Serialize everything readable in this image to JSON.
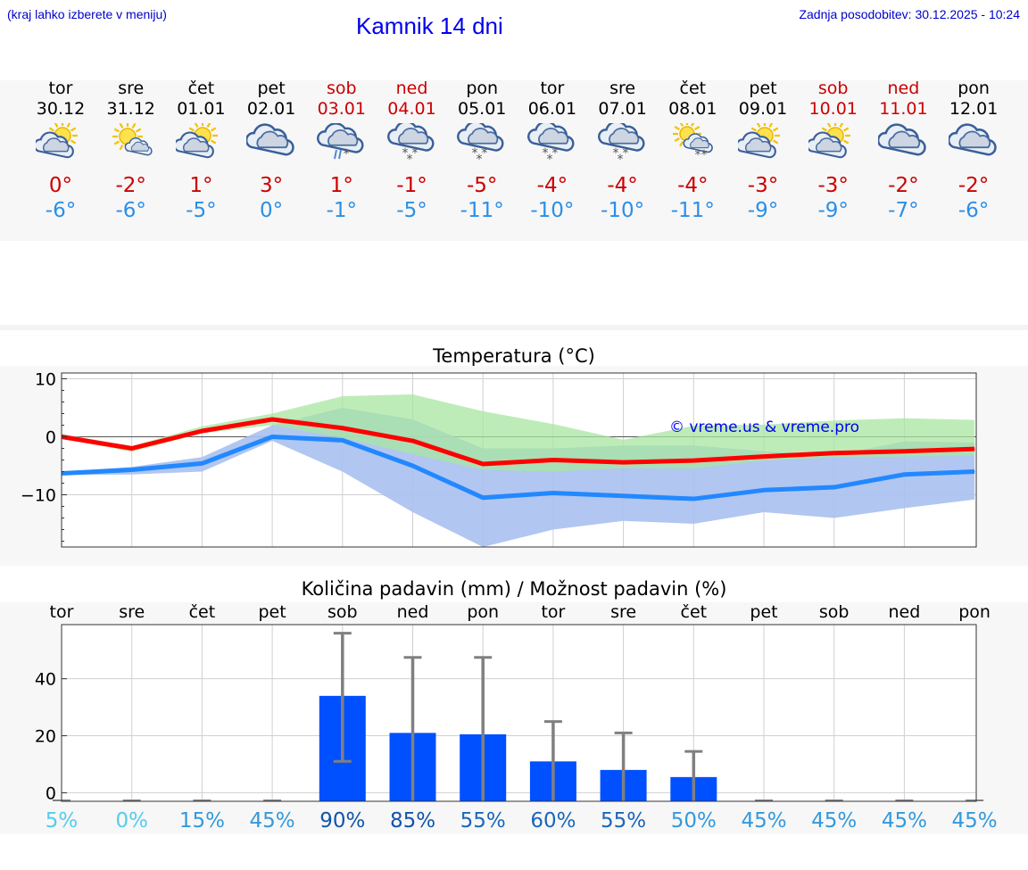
{
  "header": {
    "hint": "(kraj lahko izberete v meniju)",
    "title": "Kamnik 14 dni",
    "updated": "Zadnja posodobitev: 30.12.2025 - 10:24"
  },
  "days": [
    {
      "name": "tor",
      "date": "30.12",
      "weekend": false,
      "icon": "sun-cloud-icon",
      "hi": "0°",
      "lo": "-6°"
    },
    {
      "name": "sre",
      "date": "31.12",
      "weekend": false,
      "icon": "sun-small-cloud-icon",
      "hi": "-2°",
      "lo": "-6°"
    },
    {
      "name": "čet",
      "date": "01.01",
      "weekend": false,
      "icon": "sun-cloud-icon",
      "hi": "1°",
      "lo": "-5°"
    },
    {
      "name": "pet",
      "date": "02.01",
      "weekend": false,
      "icon": "cloudy-icon",
      "hi": "3°",
      "lo": "0°"
    },
    {
      "name": "sob",
      "date": "03.01",
      "weekend": true,
      "icon": "sleet-icon",
      "hi": "1°",
      "lo": "-1°"
    },
    {
      "name": "ned",
      "date": "04.01",
      "weekend": true,
      "icon": "snow-icon",
      "hi": "-1°",
      "lo": "-5°"
    },
    {
      "name": "pon",
      "date": "05.01",
      "weekend": false,
      "icon": "snow-icon",
      "hi": "-5°",
      "lo": "-11°"
    },
    {
      "name": "tor",
      "date": "06.01",
      "weekend": false,
      "icon": "snow-icon",
      "hi": "-4°",
      "lo": "-10°"
    },
    {
      "name": "sre",
      "date": "07.01",
      "weekend": false,
      "icon": "snow-icon",
      "hi": "-4°",
      "lo": "-10°"
    },
    {
      "name": "čet",
      "date": "08.01",
      "weekend": false,
      "icon": "sun-snow-icon",
      "hi": "-4°",
      "lo": "-11°"
    },
    {
      "name": "pet",
      "date": "09.01",
      "weekend": false,
      "icon": "sun-cloud-icon",
      "hi": "-3°",
      "lo": "-9°"
    },
    {
      "name": "sob",
      "date": "10.01",
      "weekend": true,
      "icon": "sun-cloud-icon",
      "hi": "-3°",
      "lo": "-9°"
    },
    {
      "name": "ned",
      "date": "11.01",
      "weekend": true,
      "icon": "cloudy-icon",
      "hi": "-2°",
      "lo": "-7°"
    },
    {
      "name": "pon",
      "date": "12.01",
      "weekend": false,
      "icon": "cloudy-icon",
      "hi": "-2°",
      "lo": "-6°"
    }
  ],
  "colors": {
    "max_line": "#ff0000",
    "min_line": "#2288ff",
    "max_band": "#a8e6a0",
    "min_band": "#a8c0f0",
    "overlap_band": "#7cc4a8",
    "bar": "#0050ff",
    "error_bar": "#808080"
  },
  "chart_data": [
    {
      "type": "line",
      "title": "Temperatura (°C)",
      "watermark": "© vreme.us & vreme.pro",
      "x": [
        0,
        1,
        2,
        3,
        4,
        5,
        6,
        7,
        8,
        9,
        10,
        11,
        12,
        13
      ],
      "ylim": [
        -19,
        11
      ],
      "yticks": [
        10,
        0,
        -10
      ],
      "ytick_labels": [
        "10",
        "0",
        "−10"
      ],
      "series": [
        {
          "name": "max",
          "values": [
            0,
            -2,
            1,
            3,
            1.5,
            -0.7,
            -4.7,
            -4,
            -4.4,
            -4.1,
            -3.4,
            -2.8,
            -2.5,
            -2.1
          ]
        },
        {
          "name": "min",
          "values": [
            -6.3,
            -5.7,
            -4.6,
            0,
            -0.6,
            -5,
            -10.5,
            -9.7,
            -10.2,
            -10.7,
            -9.2,
            -8.7,
            -6.5,
            -6
          ]
        },
        {
          "name": "max_range_high",
          "values": [
            0.5,
            -1.6,
            1.8,
            4,
            7,
            7.3,
            4.4,
            2.2,
            -0.5,
            1.9,
            2.1,
            2.8,
            3.2,
            2.9
          ]
        },
        {
          "name": "max_range_low",
          "values": [
            -0.3,
            -2.6,
            0.6,
            2,
            -0.2,
            -3,
            -5.7,
            -6,
            -5.4,
            -5.5,
            -4.1,
            -3.6,
            -3.4,
            -3.3
          ]
        },
        {
          "name": "min_range_high",
          "values": [
            -6,
            -5.2,
            -3.5,
            2,
            5,
            3,
            -2,
            -2,
            -1.5,
            -1.5,
            -2.5,
            -3.2,
            -0.8,
            -1
          ]
        },
        {
          "name": "min_range_low",
          "values": [
            -6.6,
            -6.5,
            -6,
            -0.7,
            -6,
            -13,
            -19,
            -16,
            -14.5,
            -15,
            -13,
            -14,
            -12.3,
            -10.8
          ]
        }
      ]
    },
    {
      "type": "bar",
      "title": "Količina padavin (mm) / Možnost padavin (%)",
      "categories": [
        "tor",
        "sre",
        "čet",
        "pet",
        "sob",
        "ned",
        "pon",
        "tor",
        "sre",
        "čet",
        "pet",
        "sob",
        "ned",
        "pon"
      ],
      "values": [
        0,
        0,
        0,
        0,
        34,
        21,
        20.5,
        11,
        8,
        5.5,
        0,
        0,
        0,
        0
      ],
      "error_low": [
        0,
        0,
        0,
        0,
        11,
        0,
        0,
        0,
        0,
        0,
        0,
        0,
        0,
        0
      ],
      "error_high": [
        0,
        0,
        0,
        0,
        56,
        47.5,
        47.5,
        25,
        21,
        14.5,
        0,
        0,
        0,
        0
      ],
      "ylim": [
        -3,
        59
      ],
      "yticks": [
        0,
        20,
        40
      ],
      "probabilities": [
        "5%",
        "0%",
        "15%",
        "45%",
        "90%",
        "85%",
        "55%",
        "60%",
        "55%",
        "50%",
        "45%",
        "45%",
        "45%",
        "45%"
      ],
      "probability_colors": [
        "#55ccee",
        "#55ccee",
        "#3399dd",
        "#3399dd",
        "#1155aa",
        "#1155aa",
        "#1a66bb",
        "#1a66bb",
        "#1a66bb",
        "#3399dd",
        "#3399dd",
        "#3399dd",
        "#3399dd",
        "#3399dd"
      ]
    }
  ]
}
